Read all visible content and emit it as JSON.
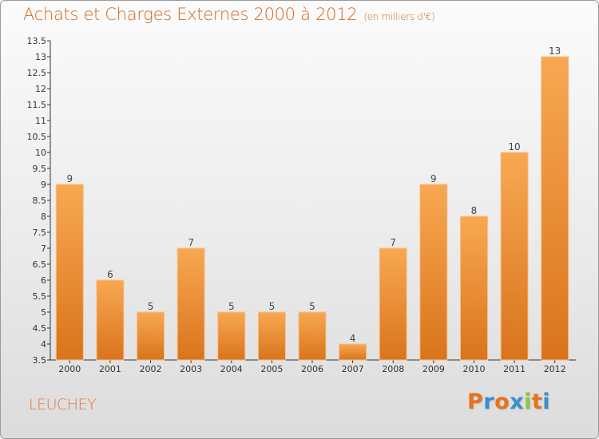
{
  "header": {
    "title": "Achats et Charges Externes 2000 à 2012",
    "subtitle": "(en milliers d'€)"
  },
  "footer": {
    "place": "LEUCHEY",
    "brand": "Proxiti",
    "brand_colors": [
      "#e8731a",
      "#3a8fd0",
      "#e8731a",
      "#3a8fd0",
      "#8dc63f",
      "#e8731a",
      "#3a8fd0"
    ]
  },
  "colors": {
    "bar_top": "#f8a852",
    "bar_bottom": "#d9741c",
    "accent": "#d2691e"
  },
  "chart_data": {
    "type": "bar",
    "title": "Achats et Charges Externes 2000 à 2012",
    "subtitle": "(en milliers d'€)",
    "categories": [
      "2000",
      "2001",
      "2002",
      "2003",
      "2004",
      "2005",
      "2006",
      "2007",
      "2008",
      "2009",
      "2010",
      "2011",
      "2012"
    ],
    "values": [
      9,
      6,
      5,
      7,
      5,
      5,
      5,
      4,
      7,
      9,
      8,
      10,
      13
    ],
    "value_labels": [
      "9",
      "6",
      "5",
      "7",
      "5",
      "5",
      "5",
      "4",
      "7",
      "9",
      "8",
      "10",
      "13"
    ],
    "ylim": [
      3.5,
      13.5
    ],
    "yticks": [
      "3.5",
      "4",
      "4.5",
      "5",
      "5.5",
      "6",
      "6.5",
      "7",
      "7.5",
      "8",
      "8.5",
      "9",
      "9.5",
      "10",
      "10.5",
      "11",
      "11.5",
      "12",
      "12.5",
      "13",
      "13.5"
    ],
    "grid": false,
    "xlabel": "",
    "ylabel": ""
  }
}
